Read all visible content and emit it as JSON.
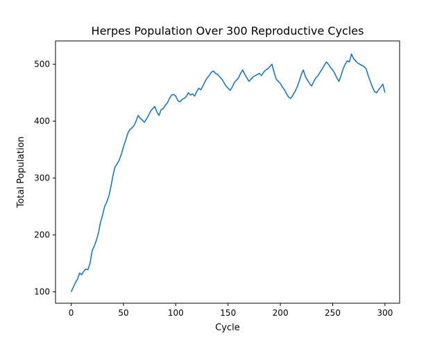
{
  "chart_data": {
    "type": "line",
    "title": "Herpes Population Over 300 Reproductive Cycles",
    "xlabel": "Cycle",
    "ylabel": "Total Population",
    "xlim": [
      -15,
      314
    ],
    "ylim": [
      80,
      541
    ],
    "xticks": [
      0,
      50,
      100,
      150,
      200,
      250,
      300
    ],
    "yticks": [
      100,
      200,
      300,
      400,
      500
    ],
    "grid": false,
    "line_color": "#1f77b4",
    "series": [
      {
        "x": [
          0,
          2,
          4,
          6,
          8,
          10,
          12,
          14,
          16,
          18,
          20,
          22,
          24,
          26,
          28,
          30,
          32,
          34,
          36,
          38,
          40,
          42,
          44,
          46,
          48,
          50,
          52,
          54,
          56,
          58,
          60,
          62,
          64,
          66,
          68,
          70,
          72,
          74,
          76,
          78,
          80,
          82,
          84,
          86,
          88,
          90,
          92,
          94,
          96,
          98,
          100,
          102,
          104,
          106,
          108,
          110,
          112,
          114,
          116,
          118,
          120,
          122,
          124,
          126,
          128,
          130,
          132,
          134,
          136,
          138,
          140,
          142,
          144,
          146,
          148,
          150,
          152,
          154,
          156,
          158,
          160,
          162,
          164,
          166,
          168,
          170,
          172,
          174,
          176,
          178,
          180,
          182,
          184,
          186,
          188,
          190,
          192,
          194,
          196,
          198,
          200,
          202,
          204,
          206,
          208,
          210,
          212,
          214,
          216,
          218,
          220,
          222,
          224,
          226,
          228,
          230,
          232,
          234,
          236,
          238,
          240,
          242,
          244,
          246,
          248,
          250,
          252,
          254,
          256,
          258,
          260,
          262,
          264,
          266,
          268,
          270,
          272,
          274,
          276,
          278,
          280,
          282,
          284,
          286,
          288,
          290,
          292,
          294,
          296,
          298,
          300
        ],
        "y": [
          100,
          108,
          116,
          122,
          133,
          130,
          136,
          140,
          139,
          150,
          172,
          180,
          190,
          203,
          222,
          235,
          250,
          258,
          268,
          285,
          305,
          320,
          325,
          332,
          342,
          355,
          366,
          378,
          385,
          388,
          392,
          400,
          410,
          405,
          402,
          398,
          404,
          410,
          418,
          422,
          426,
          416,
          410,
          420,
          422,
          428,
          432,
          440,
          446,
          447,
          444,
          436,
          434,
          438,
          440,
          443,
          450,
          446,
          448,
          444,
          452,
          458,
          455,
          462,
          470,
          476,
          480,
          486,
          488,
          484,
          482,
          478,
          474,
          468,
          462,
          458,
          454,
          460,
          468,
          472,
          476,
          484,
          490,
          482,
          476,
          470,
          474,
          478,
          480,
          482,
          484,
          480,
          486,
          490,
          492,
          496,
          500,
          486,
          474,
          470,
          466,
          460,
          455,
          448,
          442,
          440,
          446,
          452,
          460,
          470,
          482,
          490,
          478,
          472,
          466,
          462,
          470,
          476,
          480,
          486,
          492,
          498,
          504,
          500,
          494,
          490,
          484,
          476,
          470,
          480,
          492,
          500,
          506,
          504,
          518,
          510,
          506,
          502,
          500,
          498,
          496,
          492,
          480,
          470,
          460,
          452,
          450,
          455,
          460,
          465,
          450
        ]
      }
    ]
  }
}
